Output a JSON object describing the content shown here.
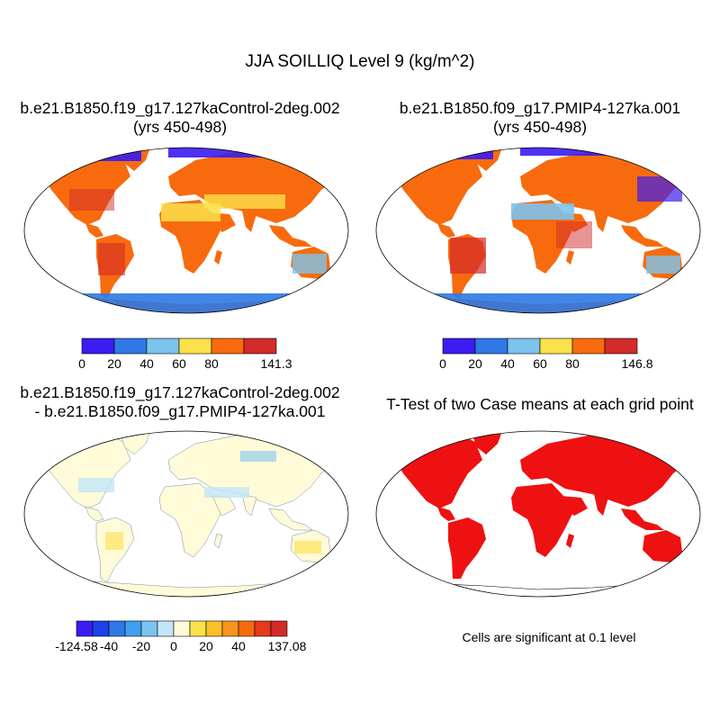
{
  "title": "JJA SOILLIQ Level 9 (kg/m^2)",
  "panels": [
    {
      "title_line1": "b.e21.B1850.f19_g17.127kaControl-2deg.002",
      "title_line2": "(yrs 450-498)",
      "colorbar": {
        "colors": [
          "#3a1cf0",
          "#2e79e6",
          "#7cc4ee",
          "#fbe14a",
          "#f76b0e",
          "#d32a2a"
        ],
        "labels": [
          "0",
          "20",
          "40",
          "60",
          "80",
          "141.3"
        ]
      }
    },
    {
      "title_line1": "b.e21.B1850.f09_g17.PMIP4-127ka.001",
      "title_line2": "(yrs 450-498)",
      "colorbar": {
        "colors": [
          "#3a1cf0",
          "#2e79e6",
          "#7cc4ee",
          "#fbe14a",
          "#f76b0e",
          "#d32a2a"
        ],
        "labels": [
          "0",
          "20",
          "40",
          "60",
          "80",
          "146.8"
        ]
      }
    },
    {
      "title_line1": "b.e21.B1850.f19_g17.127kaControl-2deg.002",
      "title_line2": "- b.e21.B1850.f09_g17.PMIP4-127ka.001",
      "colorbar": {
        "colors": [
          "#3a1cf0",
          "#1f40e6",
          "#2e79e6",
          "#3ea0f0",
          "#7cc4ee",
          "#c3e6f6",
          "#fffbd8",
          "#fbe14a",
          "#fbbf2a",
          "#f7941e",
          "#f76b0e",
          "#e63a1a",
          "#d32a2a"
        ],
        "labels": [
          "-124.58",
          "-40",
          "-20",
          "0",
          "20",
          "40",
          "137.08"
        ]
      }
    },
    {
      "title_line1": "T-Test of two Case means at each grid point",
      "note": "Cells are significant at 0.1 level"
    }
  ]
}
